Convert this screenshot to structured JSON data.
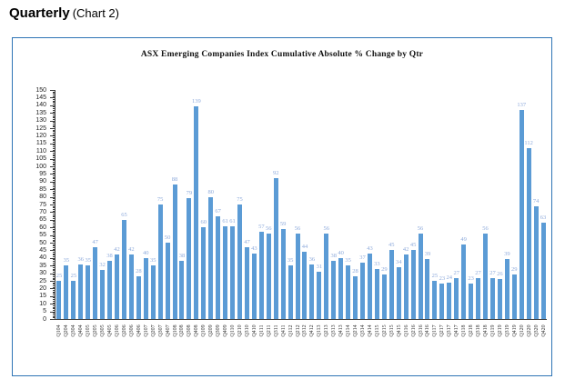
{
  "header": {
    "title": "Quarterly",
    "subtitle": "(Chart 2)"
  },
  "colors": {
    "bar": "#5B9BD5",
    "data_label": "#8EAADB",
    "axis": "#3f3f3f",
    "frame_border": "#2E74B5"
  },
  "chart_data": {
    "type": "bar",
    "title": "ASX Emerging Companies Index Cumulative Absolute % Change by Qtr",
    "xlabel": "",
    "ylabel": "",
    "ylim": [
      0,
      150
    ],
    "y_tick_step": 5,
    "y_minor_tick_step": 1,
    "grid": "off",
    "legend": "none",
    "y_ticks": [
      0,
      5,
      10,
      15,
      20,
      25,
      30,
      35,
      40,
      45,
      50,
      55,
      60,
      65,
      70,
      75,
      80,
      85,
      90,
      95,
      100,
      105,
      110,
      115,
      120,
      125,
      130,
      135,
      140,
      145,
      150
    ],
    "categories": [
      "Q104",
      "Q204",
      "Q304",
      "Q404",
      "Q105",
      "Q205",
      "Q305",
      "Q405",
      "Q106",
      "Q206",
      "Q306",
      "Q406",
      "Q107",
      "Q207",
      "Q307",
      "Q407",
      "Q108",
      "Q208",
      "Q308",
      "Q408",
      "Q109",
      "Q209",
      "Q309",
      "Q409",
      "Q110",
      "Q210",
      "Q310",
      "Q410",
      "Q111",
      "Q211",
      "Q311",
      "Q411",
      "Q112",
      "Q212",
      "Q312",
      "Q412",
      "Q113",
      "Q213",
      "Q313",
      "Q413",
      "Q114",
      "Q214",
      "Q314",
      "Q414",
      "Q115",
      "Q215",
      "Q315",
      "Q415",
      "Q116",
      "Q216",
      "Q316",
      "Q416",
      "Q117",
      "Q217",
      "Q317",
      "Q417",
      "Q118",
      "Q218",
      "Q318",
      "Q418",
      "Q119",
      "Q219",
      "Q319",
      "Q419",
      "Q120",
      "Q220",
      "Q320",
      "Q420"
    ],
    "values": [
      25,
      35,
      25,
      36,
      35,
      47,
      32,
      38,
      42,
      65,
      42,
      28,
      40,
      35,
      75,
      50,
      88,
      38,
      79,
      139,
      60,
      80,
      67,
      61,
      61,
      75,
      47,
      43,
      57,
      56,
      92,
      59,
      35,
      56,
      44,
      36,
      31,
      56,
      38,
      40,
      35,
      28,
      37,
      43,
      33,
      29,
      45,
      34,
      42,
      45,
      56,
      39,
      25,
      23,
      24,
      27,
      49,
      23,
      27,
      56,
      27,
      26,
      39,
      29,
      137,
      112,
      74,
      63
    ]
  }
}
